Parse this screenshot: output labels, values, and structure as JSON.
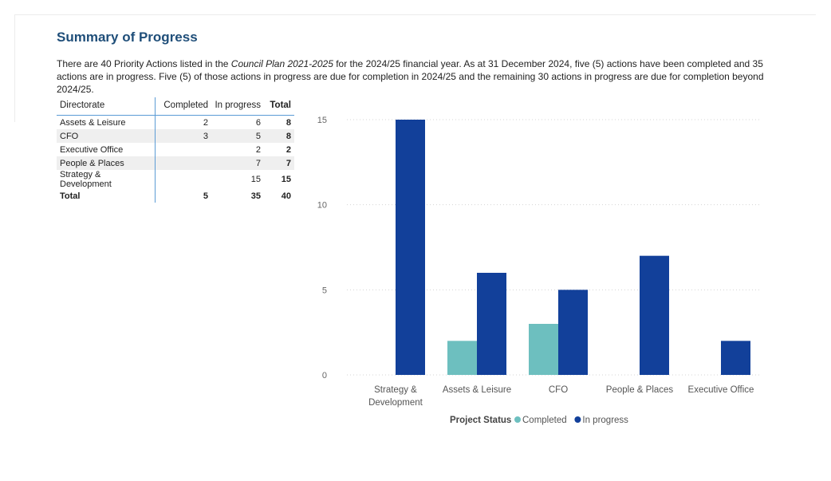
{
  "header": {
    "title": "Summary of Progress",
    "intro": {
      "part1": "There are 40 Priority Actions listed in the ",
      "italic": "Council Plan 2021-2025",
      "part2": " for the 2024/25 financial year.  As at 31 December 2024, five (5) actions have been completed and 35 actions are in progress.   Five (5) of those actions in progress are due for completion in 2024/25 and the remaining 30 actions in progress are due for completion beyond 2024/25."
    }
  },
  "table": {
    "columns": [
      "Directorate",
      "Completed",
      "In progress",
      "Total"
    ],
    "rows": [
      {
        "directorate": "Assets & Leisure",
        "completed": "2",
        "in_progress": "6",
        "total": "8"
      },
      {
        "directorate": "CFO",
        "completed": "3",
        "in_progress": "5",
        "total": "8"
      },
      {
        "directorate": "Executive Office",
        "completed": "",
        "in_progress": "2",
        "total": "2"
      },
      {
        "directorate": "People & Places",
        "completed": "",
        "in_progress": "7",
        "total": "7"
      },
      {
        "directorate": "Strategy & Development",
        "completed": "",
        "in_progress": "15",
        "total": "15"
      }
    ],
    "grand_total": {
      "label": "Total",
      "completed": "5",
      "in_progress": "35",
      "total": "40"
    }
  },
  "chart_data": {
    "type": "bar",
    "categories": [
      "Strategy & Development",
      "Assets & Leisure",
      "CFO",
      "People & Places",
      "Executive Office"
    ],
    "category_lines": [
      [
        "Strategy &",
        "Development"
      ],
      [
        "Assets & Leisure"
      ],
      [
        "CFO"
      ],
      [
        "People & Places"
      ],
      [
        "Executive Office"
      ]
    ],
    "series": [
      {
        "name": "Completed",
        "color": "#6dbfbf",
        "values": [
          0,
          2,
          3,
          0,
          0
        ]
      },
      {
        "name": "In progress",
        "color": "#12409a",
        "values": [
          15,
          6,
          5,
          7,
          2
        ]
      }
    ],
    "yticks": [
      0,
      5,
      10,
      15
    ],
    "ylim": [
      0,
      15
    ],
    "grid": true,
    "legend_title": "Project Status",
    "legend_position": "bottom-center"
  }
}
